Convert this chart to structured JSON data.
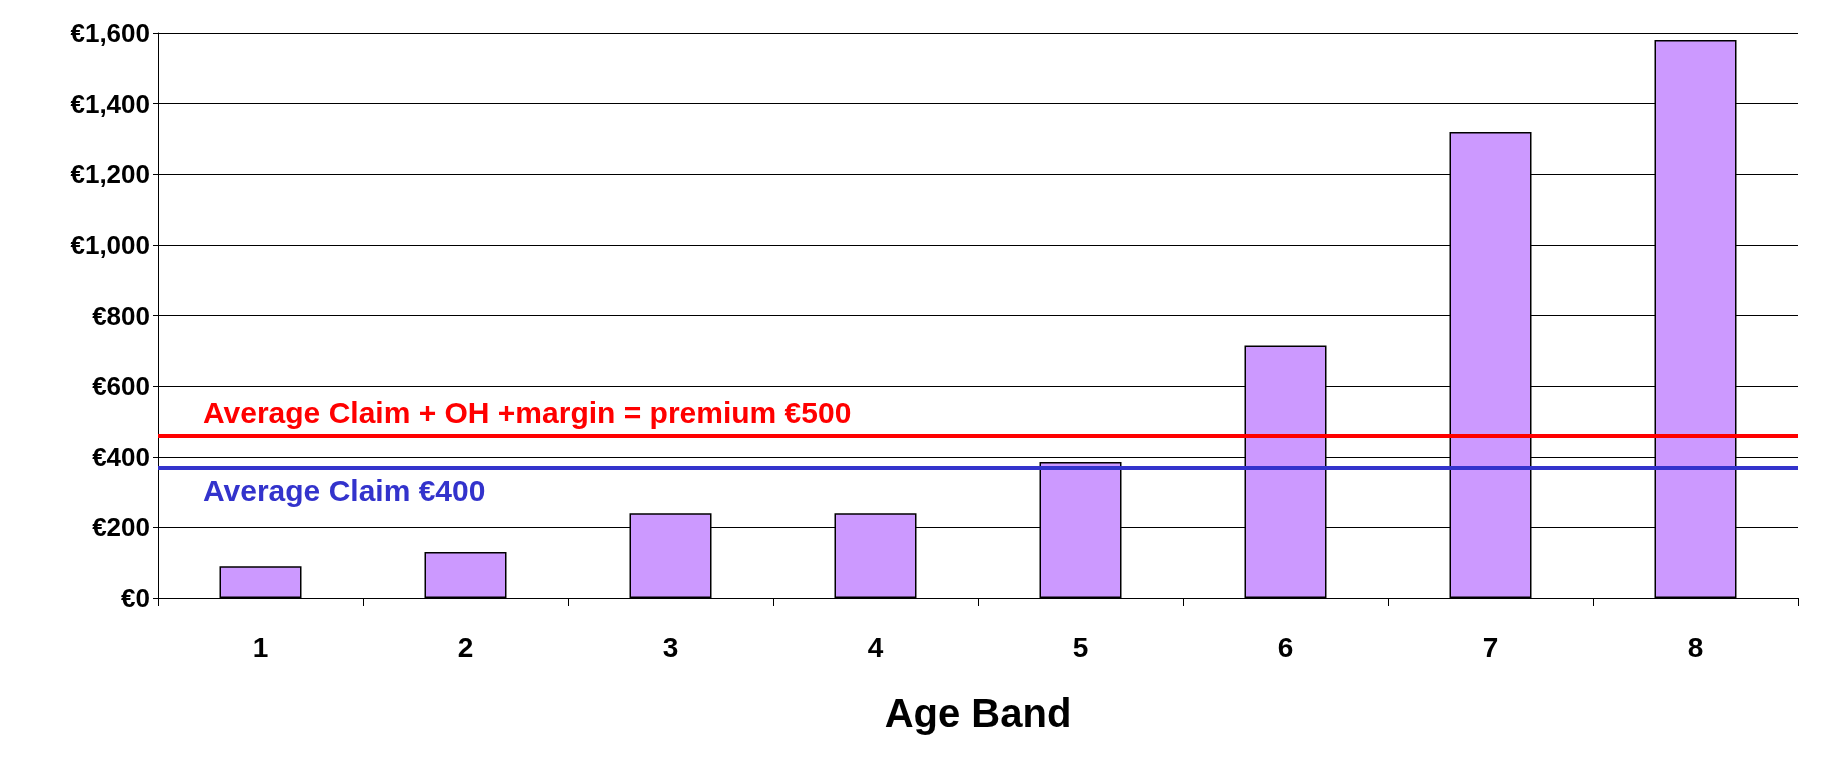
{
  "chart_data": {
    "type": "bar",
    "xlabel": "Age Band",
    "categories": [
      "1",
      "2",
      "3",
      "4",
      "5",
      "6",
      "7",
      "8"
    ],
    "values": [
      90,
      130,
      240,
      240,
      385,
      715,
      1320,
      1580
    ],
    "color": "#cc99ff",
    "ylim": [
      0,
      1600
    ],
    "yticks": [
      {
        "value": 0,
        "label": "€0"
      },
      {
        "value": 200,
        "label": "€200"
      },
      {
        "value": 400,
        "label": "€400"
      },
      {
        "value": 600,
        "label": "€600"
      },
      {
        "value": 800,
        "label": "€800"
      },
      {
        "value": 1000,
        "label": "€1,000"
      },
      {
        "value": 1200,
        "label": "€1,200"
      },
      {
        "value": 1400,
        "label": "€1,400"
      },
      {
        "value": 1600,
        "label": "€1,600"
      }
    ],
    "grid": "y",
    "ref_lines": [
      {
        "axis": "y",
        "value": 460,
        "label": "Average Claim + OH +margin = premium €500",
        "color": "#ff0000"
      },
      {
        "axis": "y",
        "value": 370,
        "label": "Average Claim €400",
        "color": "#3333cc"
      }
    ]
  }
}
